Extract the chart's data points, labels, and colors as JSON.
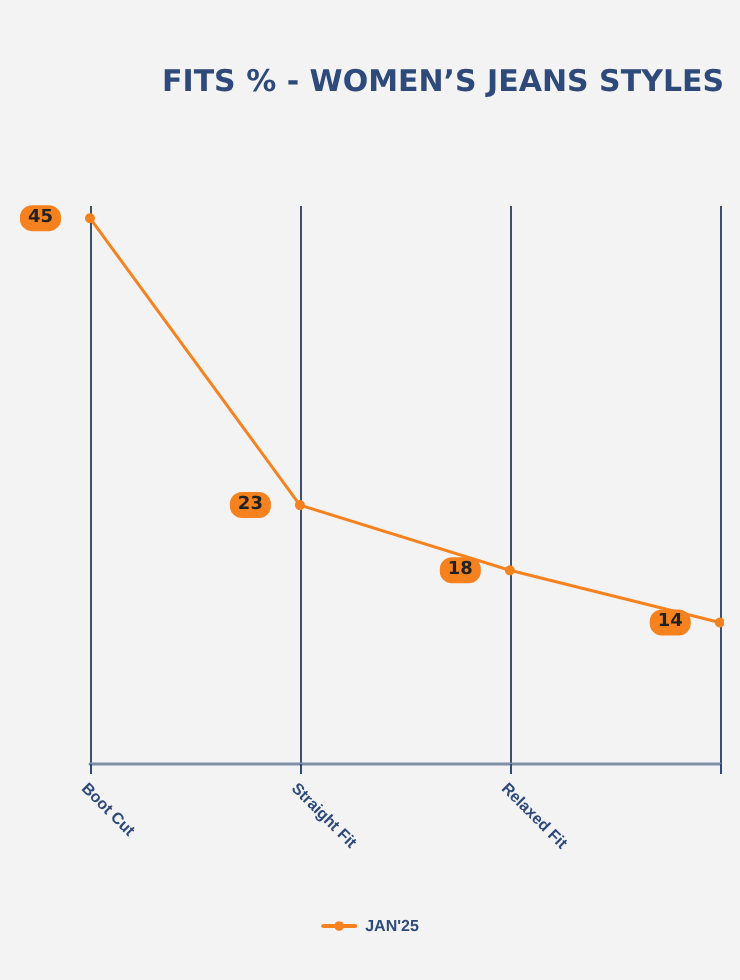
{
  "chart_data": {
    "type": "line",
    "title": "FITS % - WOMEN’S JEANS STYLES",
    "categories": [
      "Boot Cut",
      "Straight Fit",
      "Relaxed Fit",
      null
    ],
    "series": [
      {
        "name": "JAN'25",
        "color": "#f5821f",
        "values": [
          45,
          23,
          18,
          14
        ]
      }
    ],
    "data_labels": true,
    "grid": "x",
    "legend": "bottom",
    "marker": "circle",
    "line_style": "solid"
  }
}
